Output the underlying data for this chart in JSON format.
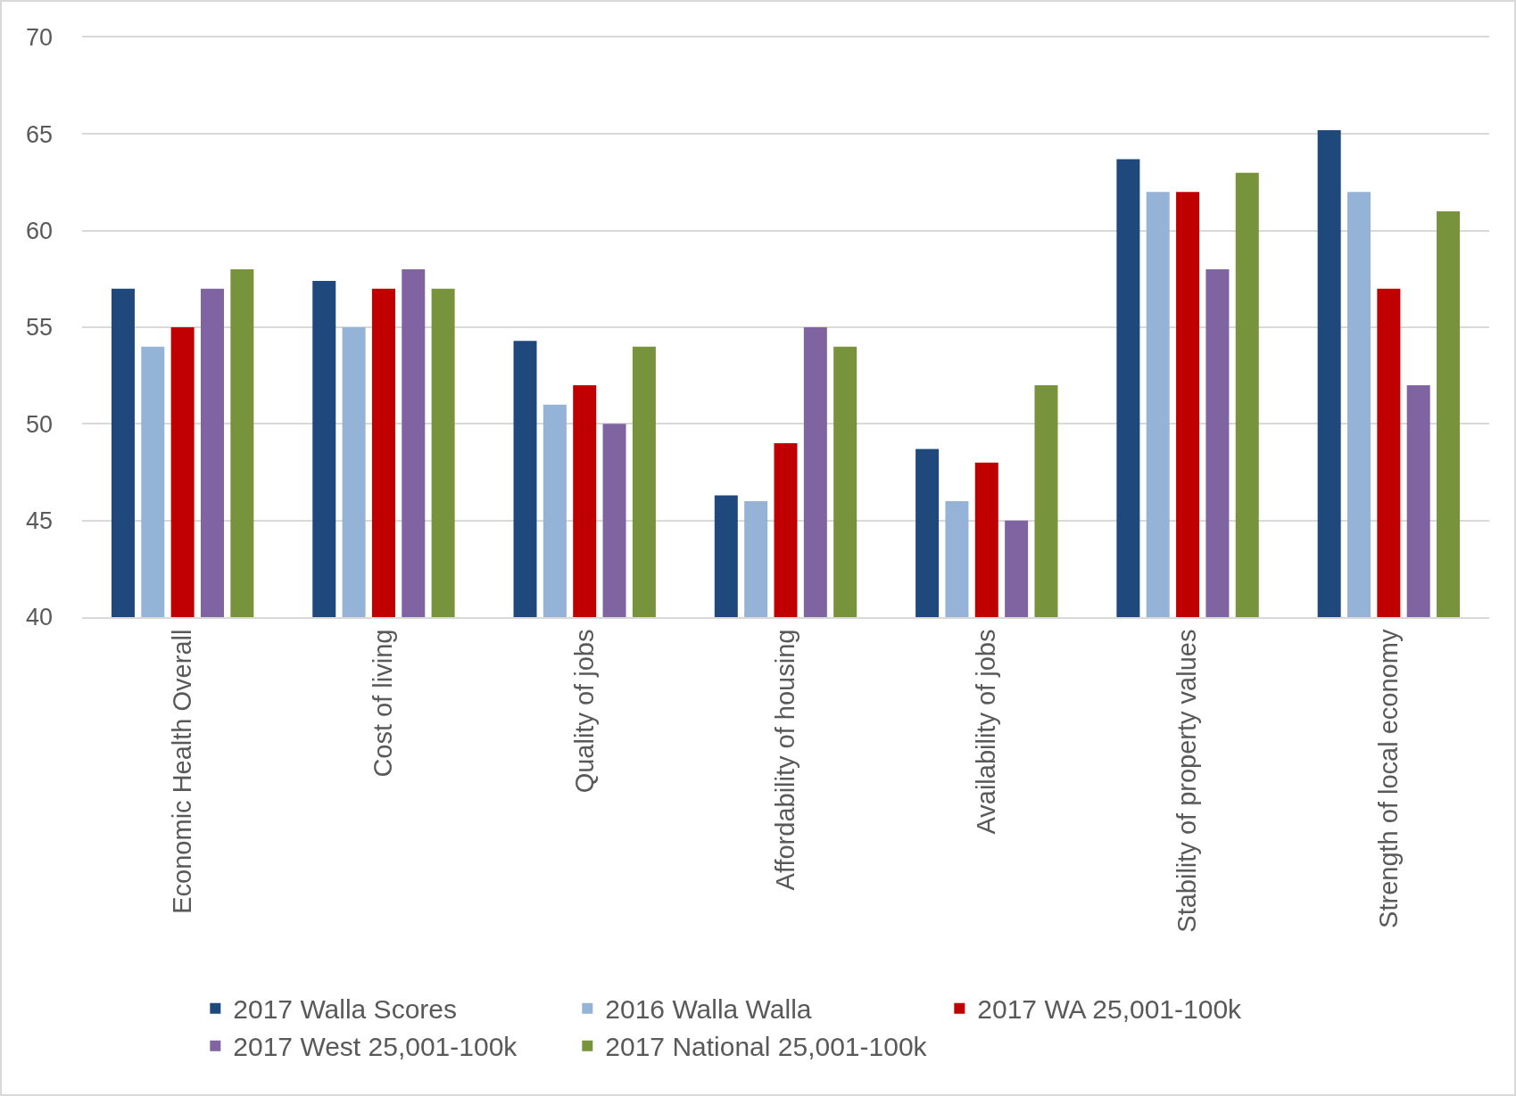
{
  "chart_data": {
    "type": "bar",
    "categories": [
      "Economic Health Overall",
      "Cost of living",
      "Quality of jobs",
      "Affordability of housing",
      "Availability of jobs",
      "Stability of property values",
      "Strength of local economy"
    ],
    "series": [
      {
        "name": "2017 Walla Scores",
        "color": "#1f497d",
        "values": [
          57,
          57.4,
          54.3,
          46.3,
          48.7,
          63.7,
          65.2
        ]
      },
      {
        "name": "2016 Walla Walla",
        "color": "#95b3d7",
        "values": [
          54,
          55,
          51,
          46,
          46,
          62,
          62
        ]
      },
      {
        "name": "2017 WA 25,001-100k",
        "color": "#c00000",
        "values": [
          55,
          57,
          52,
          49,
          48,
          62,
          57
        ]
      },
      {
        "name": "2017 West 25,001-100k",
        "color": "#8064a2",
        "values": [
          57,
          58,
          50,
          55,
          45,
          58,
          52
        ]
      },
      {
        "name": "2017 National 25,001-100k",
        "color": "#77933c",
        "values": [
          58,
          57,
          54,
          54,
          52,
          63,
          61
        ]
      }
    ],
    "ylim": [
      40,
      70
    ],
    "yticks": [
      40,
      45,
      50,
      55,
      60,
      65,
      70
    ],
    "grid": "y",
    "legend": "bottom"
  }
}
